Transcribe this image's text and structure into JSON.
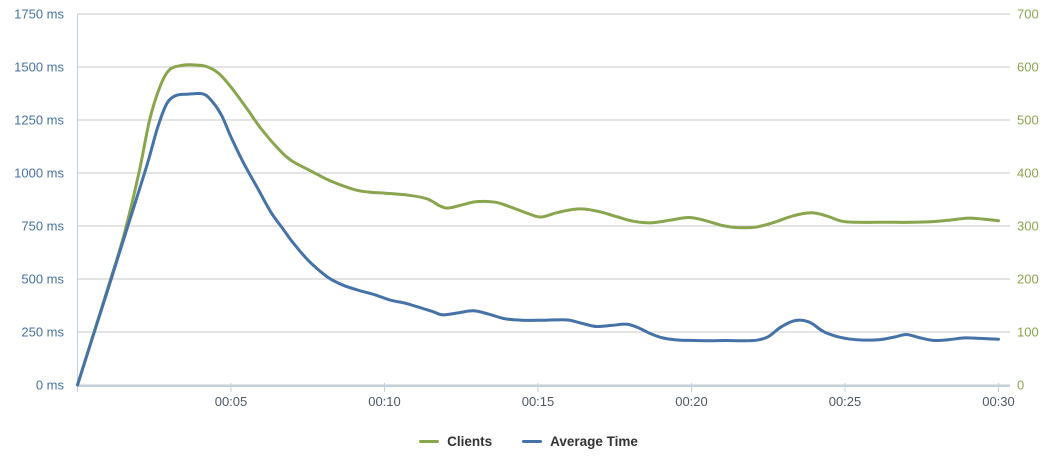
{
  "chart_data": {
    "type": "line",
    "title": "",
    "grid": true,
    "legend_position": "bottom-center",
    "x_axis": {
      "unit": "time mm:ss",
      "tick_labels": [
        "00:05",
        "00:10",
        "00:15",
        "00:20",
        "00:25",
        "00:30"
      ],
      "tick_minutes": [
        5,
        10,
        15,
        20,
        25,
        30
      ],
      "range_minutes": [
        0,
        30.4
      ]
    },
    "y_axis_left": {
      "tick_labels": [
        "0 ms",
        "250 ms",
        "500 ms",
        "750 ms",
        "1000 ms",
        "1250 ms",
        "1500 ms",
        "1750 ms"
      ],
      "tick_values": [
        0,
        250,
        500,
        750,
        1000,
        1250,
        1500,
        1750
      ],
      "range": [
        0,
        1750
      ],
      "label_color": "#4572A7"
    },
    "y_axis_right": {
      "tick_labels": [
        "0",
        "100",
        "200",
        "300",
        "400",
        "500",
        "600",
        "700"
      ],
      "tick_values": [
        0,
        100,
        200,
        300,
        400,
        500,
        600,
        700
      ],
      "range": [
        0,
        700
      ],
      "label_color": "#89A54E"
    },
    "series": [
      {
        "name": "Clients",
        "color": "#89A54E",
        "axis": "right",
        "points": [
          [
            0,
            0
          ],
          [
            0.5,
            92
          ],
          [
            1,
            185
          ],
          [
            1.5,
            280
          ],
          [
            2,
            400
          ],
          [
            2.35,
            500
          ],
          [
            2.7,
            565
          ],
          [
            3,
            595
          ],
          [
            3.4,
            603
          ],
          [
            3.8,
            604
          ],
          [
            4.2,
            601
          ],
          [
            4.6,
            588
          ],
          [
            5,
            562
          ],
          [
            5.5,
            523
          ],
          [
            6,
            482
          ],
          [
            6.6,
            442
          ],
          [
            7,
            422
          ],
          [
            7.6,
            404
          ],
          [
            8.2,
            386
          ],
          [
            9,
            369
          ],
          [
            9.5,
            364
          ],
          [
            10,
            362
          ],
          [
            10.8,
            358
          ],
          [
            11.4,
            351
          ],
          [
            11.8,
            338
          ],
          [
            12.1,
            334
          ],
          [
            12.6,
            341
          ],
          [
            13,
            346
          ],
          [
            13.6,
            345
          ],
          [
            14.1,
            336
          ],
          [
            14.7,
            323
          ],
          [
            15.1,
            317
          ],
          [
            15.6,
            325
          ],
          [
            16.1,
            331
          ],
          [
            16.5,
            332
          ],
          [
            17,
            327
          ],
          [
            17.6,
            317
          ],
          [
            18.1,
            309
          ],
          [
            18.7,
            306
          ],
          [
            19.3,
            311
          ],
          [
            19.9,
            316
          ],
          [
            20.4,
            311
          ],
          [
            21,
            301
          ],
          [
            21.5,
            297
          ],
          [
            22.1,
            298
          ],
          [
            22.7,
            307
          ],
          [
            23.3,
            319
          ],
          [
            23.9,
            325
          ],
          [
            24.4,
            319
          ],
          [
            24.9,
            309
          ],
          [
            25.4,
            307
          ],
          [
            26,
            307
          ],
          [
            26.6,
            307
          ],
          [
            27.2,
            307
          ],
          [
            27.8,
            308
          ],
          [
            28.4,
            311
          ],
          [
            29,
            315
          ],
          [
            29.5,
            313
          ],
          [
            30,
            310
          ]
        ]
      },
      {
        "name": "Average Time",
        "color": "#4572A7",
        "axis": "left",
        "points": [
          [
            0,
            0
          ],
          [
            0.5,
            228
          ],
          [
            1,
            455
          ],
          [
            1.5,
            685
          ],
          [
            2,
            915
          ],
          [
            2.3,
            1055
          ],
          [
            2.6,
            1210
          ],
          [
            2.9,
            1325
          ],
          [
            3.2,
            1365
          ],
          [
            3.6,
            1372
          ],
          [
            4.1,
            1372
          ],
          [
            4.4,
            1335
          ],
          [
            4.7,
            1270
          ],
          [
            5,
            1170
          ],
          [
            5.4,
            1050
          ],
          [
            5.9,
            920
          ],
          [
            6.3,
            815
          ],
          [
            6.7,
            735
          ],
          [
            7,
            675
          ],
          [
            7.5,
            590
          ],
          [
            8,
            525
          ],
          [
            8.3,
            495
          ],
          [
            8.7,
            468
          ],
          [
            9.2,
            445
          ],
          [
            9.7,
            425
          ],
          [
            10.2,
            400
          ],
          [
            10.7,
            385
          ],
          [
            11.2,
            363
          ],
          [
            11.6,
            345
          ],
          [
            11.9,
            331
          ],
          [
            12.4,
            340
          ],
          [
            12.9,
            350
          ],
          [
            13.4,
            334
          ],
          [
            13.9,
            313
          ],
          [
            14.4,
            306
          ],
          [
            15,
            305
          ],
          [
            15.5,
            307
          ],
          [
            16,
            306
          ],
          [
            16.5,
            288
          ],
          [
            16.9,
            276
          ],
          [
            17.4,
            281
          ],
          [
            17.9,
            287
          ],
          [
            18.3,
            268
          ],
          [
            18.7,
            240
          ],
          [
            19.1,
            221
          ],
          [
            19.6,
            212
          ],
          [
            20.1,
            210
          ],
          [
            20.6,
            209
          ],
          [
            21.1,
            210
          ],
          [
            21.6,
            209
          ],
          [
            22.1,
            211
          ],
          [
            22.5,
            228
          ],
          [
            22.9,
            272
          ],
          [
            23.3,
            301
          ],
          [
            23.6,
            305
          ],
          [
            23.9,
            292
          ],
          [
            24.3,
            252
          ],
          [
            24.7,
            230
          ],
          [
            25.1,
            218
          ],
          [
            25.6,
            212
          ],
          [
            26.1,
            213
          ],
          [
            26.6,
            226
          ],
          [
            27,
            238
          ],
          [
            27.4,
            224
          ],
          [
            27.9,
            210
          ],
          [
            28.4,
            214
          ],
          [
            28.9,
            222
          ],
          [
            29.4,
            220
          ],
          [
            30,
            216
          ]
        ]
      }
    ]
  },
  "colors": {
    "background": "#FFFFFF",
    "grid": "#C8C8C8",
    "axis_line": "#C0D0E0",
    "x_label": "#4D5866",
    "legend_text": "#333333"
  }
}
